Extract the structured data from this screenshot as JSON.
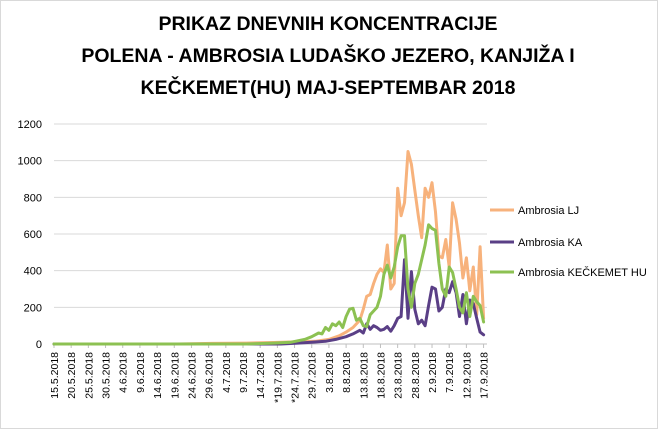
{
  "chart_data": {
    "type": "line",
    "title_lines": [
      "PRIKAZ DNEVNIH KONCENTRACIJE",
      "POLENA - AMBROSIA LUDAŠKO JEZERO,  KANJIŽA I",
      "KEČKEMET(HU) MAJ-SEPTEMBAR 2018"
    ],
    "xlabel": "",
    "ylabel": "",
    "ylim": [
      0,
      1200
    ],
    "yticks": [
      0,
      200,
      400,
      600,
      800,
      1000,
      1200
    ],
    "grid": "horizontal",
    "legend_position": "right",
    "x_range": [
      "15.5.2018",
      "18.9.2018"
    ],
    "x_tick_labels": [
      "15.5.2018",
      "20.5.2018",
      "25.5.2018",
      "30.5.2018",
      "4.6.2018",
      "9.6.2018",
      "14.6.2018",
      "19.6.2018",
      "24.6.2018",
      "29.6.2018",
      "4.7.2018",
      "9.7.2018",
      "14.7.2018",
      "*19.7.2018",
      "*24.7.2018",
      "29.7.2018",
      "3.8.2018",
      "8.8.2018",
      "13.8.2018",
      "18.8.2018",
      "23.8.2018",
      "28.8.2018",
      "2.9.2018",
      "7.9.2018",
      "12.9.2018",
      "17.9.2018"
    ],
    "series": [
      {
        "name": "Ambrosia LJ",
        "color": "#f7b27c",
        "points": [
          [
            "15.5.2018",
            0
          ],
          [
            "20.6.2018",
            0
          ],
          [
            "30.6.2018",
            3
          ],
          [
            "10.7.2018",
            5
          ],
          [
            "18.7.2018",
            8
          ],
          [
            "25.7.2018",
            12
          ],
          [
            "30.7.2018",
            15
          ],
          [
            "3.8.2018",
            25
          ],
          [
            "6.8.2018",
            45
          ],
          [
            "8.8.2018",
            65
          ],
          [
            "10.8.2018",
            90
          ],
          [
            "12.8.2018",
            130
          ],
          [
            "13.8.2018",
            190
          ],
          [
            "14.8.2018",
            260
          ],
          [
            "15.8.2018",
            270
          ],
          [
            "16.8.2018",
            330
          ],
          [
            "17.8.2018",
            380
          ],
          [
            "18.8.2018",
            410
          ],
          [
            "19.8.2018",
            390
          ],
          [
            "20.8.2018",
            540
          ],
          [
            "21.8.2018",
            300
          ],
          [
            "22.8.2018",
            330
          ],
          [
            "23.8.2018",
            850
          ],
          [
            "24.8.2018",
            700
          ],
          [
            "25.8.2018",
            770
          ],
          [
            "26.8.2018",
            1050
          ],
          [
            "27.8.2018",
            980
          ],
          [
            "28.8.2018",
            840
          ],
          [
            "29.8.2018",
            700
          ],
          [
            "30.8.2018",
            580
          ],
          [
            "31.8.2018",
            850
          ],
          [
            "1.9.2018",
            800
          ],
          [
            "2.9.2018",
            880
          ],
          [
            "3.9.2018",
            720
          ],
          [
            "4.9.2018",
            480
          ],
          [
            "5.9.2018",
            470
          ],
          [
            "6.9.2018",
            570
          ],
          [
            "7.9.2018",
            420
          ],
          [
            "8.9.2018",
            770
          ],
          [
            "9.9.2018",
            680
          ],
          [
            "10.9.2018",
            550
          ],
          [
            "11.9.2018",
            360
          ],
          [
            "12.9.2018",
            470
          ],
          [
            "13.9.2018",
            290
          ],
          [
            "14.9.2018",
            420
          ],
          [
            "15.9.2018",
            160
          ],
          [
            "16.9.2018",
            530
          ],
          [
            "17.9.2018",
            140
          ]
        ]
      },
      {
        "name": "Ambrosia KA",
        "color": "#5a3f86",
        "points": [
          [
            "15.5.2018",
            0
          ],
          [
            "20.7.2018",
            0
          ],
          [
            "25.7.2018",
            5
          ],
          [
            "29.7.2018",
            10
          ],
          [
            "2.8.2018",
            15
          ],
          [
            "5.8.2018",
            25
          ],
          [
            "8.8.2018",
            40
          ],
          [
            "10.8.2018",
            55
          ],
          [
            "12.8.2018",
            75
          ],
          [
            "13.8.2018",
            60
          ],
          [
            "14.8.2018",
            110
          ],
          [
            "15.8.2018",
            80
          ],
          [
            "16.8.2018",
            100
          ],
          [
            "17.8.2018",
            90
          ],
          [
            "18.8.2018",
            75
          ],
          [
            "19.8.2018",
            80
          ],
          [
            "20.8.2018",
            95
          ],
          [
            "21.8.2018",
            70
          ],
          [
            "22.8.2018",
            100
          ],
          [
            "23.8.2018",
            140
          ],
          [
            "24.8.2018",
            150
          ],
          [
            "25.8.2018",
            460
          ],
          [
            "26.8.2018",
            140
          ],
          [
            "27.8.2018",
            395
          ],
          [
            "28.8.2018",
            190
          ],
          [
            "29.8.2018",
            110
          ],
          [
            "30.8.2018",
            130
          ],
          [
            "31.8.2018",
            100
          ],
          [
            "1.9.2018",
            210
          ],
          [
            "2.9.2018",
            310
          ],
          [
            "3.9.2018",
            300
          ],
          [
            "4.9.2018",
            180
          ],
          [
            "5.9.2018",
            200
          ],
          [
            "6.9.2018",
            300
          ],
          [
            "7.9.2018",
            280
          ],
          [
            "8.9.2018",
            340
          ],
          [
            "9.9.2018",
            280
          ],
          [
            "10.9.2018",
            150
          ],
          [
            "11.9.2018",
            270
          ],
          [
            "12.9.2018",
            110
          ],
          [
            "13.9.2018",
            240
          ],
          [
            "14.9.2018",
            220
          ],
          [
            "15.9.2018",
            140
          ],
          [
            "16.9.2018",
            65
          ],
          [
            "17.9.2018",
            50
          ]
        ]
      },
      {
        "name": "Ambrosia KEČKEMET HU",
        "color": "#8cc152",
        "points": [
          [
            "15.5.2018",
            0
          ],
          [
            "10.7.2018",
            0
          ],
          [
            "18.7.2018",
            5
          ],
          [
            "23.7.2018",
            10
          ],
          [
            "27.7.2018",
            25
          ],
          [
            "29.7.2018",
            40
          ],
          [
            "31.7.2018",
            60
          ],
          [
            "1.8.2018",
            55
          ],
          [
            "2.8.2018",
            90
          ],
          [
            "3.8.2018",
            75
          ],
          [
            "4.8.2018",
            110
          ],
          [
            "5.8.2018",
            100
          ],
          [
            "6.8.2018",
            120
          ],
          [
            "7.8.2018",
            90
          ],
          [
            "8.8.2018",
            150
          ],
          [
            "9.8.2018",
            190
          ],
          [
            "10.8.2018",
            195
          ],
          [
            "11.8.2018",
            130
          ],
          [
            "12.8.2018",
            140
          ],
          [
            "13.8.2018",
            100
          ],
          [
            "14.8.2018",
            95
          ],
          [
            "15.8.2018",
            160
          ],
          [
            "16.8.2018",
            180
          ],
          [
            "17.8.2018",
            200
          ],
          [
            "18.8.2018",
            260
          ],
          [
            "19.8.2018",
            380
          ],
          [
            "20.8.2018",
            430
          ],
          [
            "21.8.2018",
            360
          ],
          [
            "22.8.2018",
            420
          ],
          [
            "23.8.2018",
            530
          ],
          [
            "24.8.2018",
            590
          ],
          [
            "25.8.2018",
            590
          ],
          [
            "26.8.2018",
            300
          ],
          [
            "27.8.2018",
            200
          ],
          [
            "28.8.2018",
            330
          ],
          [
            "29.8.2018",
            380
          ],
          [
            "30.8.2018",
            460
          ],
          [
            "31.8.2018",
            540
          ],
          [
            "1.9.2018",
            650
          ],
          [
            "2.9.2018",
            630
          ],
          [
            "3.9.2018",
            620
          ],
          [
            "4.9.2018",
            440
          ],
          [
            "5.9.2018",
            300
          ],
          [
            "6.9.2018",
            260
          ],
          [
            "7.9.2018",
            420
          ],
          [
            "8.9.2018",
            390
          ],
          [
            "9.9.2018",
            300
          ],
          [
            "10.9.2018",
            200
          ],
          [
            "11.9.2018",
            170
          ],
          [
            "12.9.2018",
            280
          ],
          [
            "13.9.2018",
            150
          ],
          [
            "14.9.2018",
            260
          ],
          [
            "15.9.2018",
            230
          ],
          [
            "16.9.2018",
            210
          ],
          [
            "17.9.2018",
            120
          ]
        ]
      }
    ]
  }
}
